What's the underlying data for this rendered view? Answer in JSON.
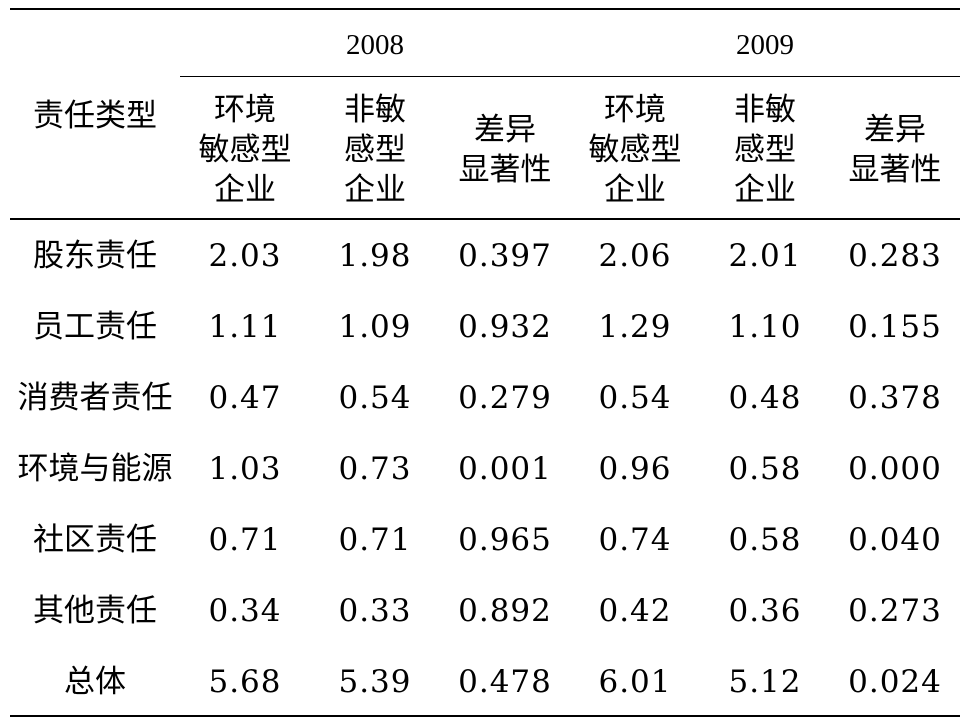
{
  "table": {
    "row_header": "责任类型",
    "years": [
      "2008",
      "2009"
    ],
    "columns": [
      "环境\n敏感型\n企业",
      "非敏\n感型\n企业",
      "差异\n显著性",
      "环境\n敏感型\n企业",
      "非敏\n感型\n企业",
      "差异\n显著性"
    ],
    "rows": [
      {
        "label": "股东责任",
        "values": [
          "2.03",
          "1.98",
          "0.397",
          "2.06",
          "2.01",
          "0.283"
        ]
      },
      {
        "label": "员工责任",
        "values": [
          "1.11",
          "1.09",
          "0.932",
          "1.29",
          "1.10",
          "0.155"
        ]
      },
      {
        "label": "消费者责任",
        "values": [
          "0.47",
          "0.54",
          "0.279",
          "0.54",
          "0.48",
          "0.378"
        ]
      },
      {
        "label": "环境与能源",
        "values": [
          "1.03",
          "0.73",
          "0.001",
          "0.96",
          "0.58",
          "0.000"
        ]
      },
      {
        "label": "社区责任",
        "values": [
          "0.71",
          "0.71",
          "0.965",
          "0.74",
          "0.58",
          "0.040"
        ]
      },
      {
        "label": "其他责任",
        "values": [
          "0.34",
          "0.33",
          "0.892",
          "0.42",
          "0.36",
          "0.273"
        ]
      },
      {
        "label": "总体",
        "values": [
          "5.68",
          "5.39",
          "0.478",
          "6.01",
          "5.12",
          "0.024"
        ]
      }
    ]
  }
}
